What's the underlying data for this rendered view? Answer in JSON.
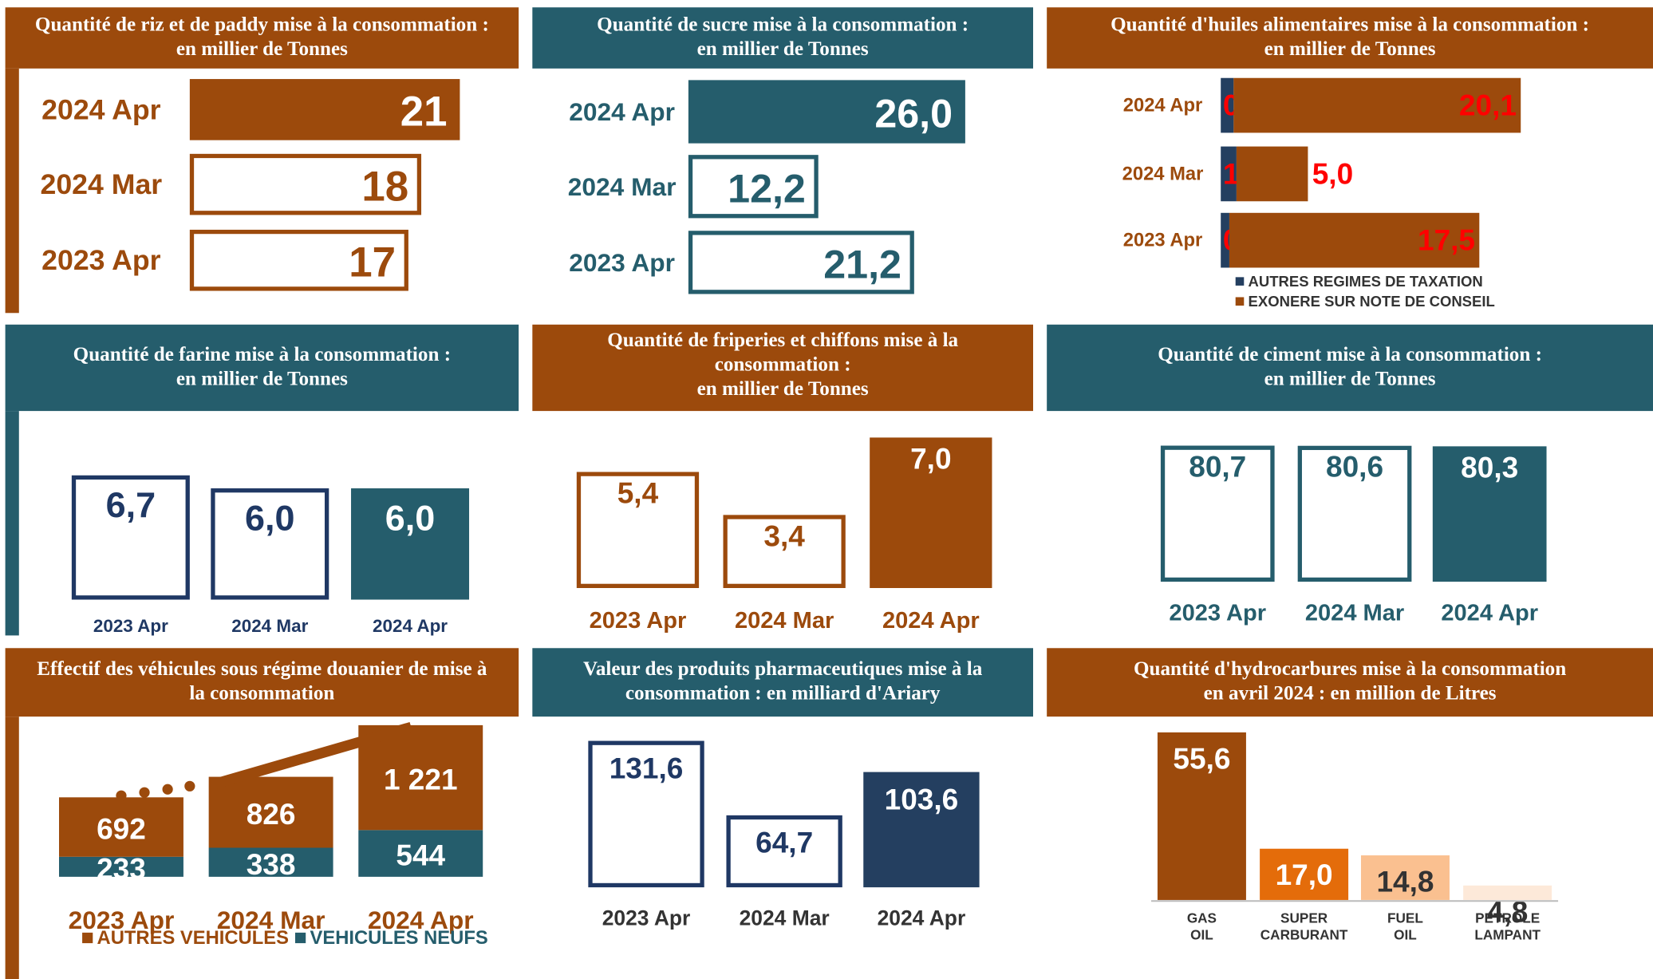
{
  "chart_data": [
    {
      "type": "bar",
      "orientation": "horizontal",
      "title": [
        "Quantité de riz et de paddy mise à la consommation :",
        "en millier de Tonnes"
      ],
      "panel_color": "#9c4a0c",
      "label_color": "#9c4a0c",
      "categories": [
        "2024 Apr",
        "2024 Mar",
        "2023 Apr"
      ],
      "values": [
        21,
        18,
        17
      ],
      "colors": [
        "#9c4a0c",
        "#9c4a0c",
        "#9c4a0c"
      ],
      "filled": [
        true,
        false,
        false
      ]
    },
    {
      "type": "bar",
      "orientation": "horizontal",
      "title": [
        "Quantité de sucre mise à la consommation :",
        "en millier de Tonnes"
      ],
      "panel_color": "#255d6c",
      "label_color": "#255d6c",
      "categories": [
        "2024 Apr",
        "2024 Mar",
        "2023 Apr"
      ],
      "values": [
        26.0,
        12.2,
        21.2
      ],
      "value_labels": [
        "26,0",
        "12,2",
        "21,2"
      ],
      "colors": [
        "#255d6c",
        "#255d6c",
        "#255d6c"
      ],
      "filled": [
        true,
        false,
        false
      ]
    },
    {
      "type": "bar",
      "orientation": "horizontal",
      "stacked": true,
      "title": [
        "Quantité d'huiles alimentaires mise à la consommation :",
        "en millier de Tonnes"
      ],
      "panel_color": "#9c4a0c",
      "label_color": "#9c4a0c",
      "value_label_color": "#ff0000",
      "categories": [
        "2024 Apr",
        "2024 Mar",
        "2023 Apr"
      ],
      "series": [
        {
          "name": "AUTRES REGIMES DE TAXATION",
          "color": "#243f60",
          "values": [
            0.9,
            1.1,
            0.6
          ],
          "value_labels": [
            "0,9",
            "1,1",
            "0,6"
          ]
        },
        {
          "name": "EXONERE SUR NOTE DE CONSEIL",
          "color": "#9c4a0c",
          "values": [
            20.1,
            5.0,
            17.5
          ],
          "value_labels": [
            "20,1",
            "5,0",
            "17,5"
          ]
        }
      ]
    },
    {
      "type": "bar",
      "title": [
        "Quantité de farine mise à la consommation :",
        "en millier de Tonnes"
      ],
      "panel_color": "#255d6c",
      "label_color": "#1f3864",
      "categories": [
        "2023 Apr",
        "2024 Mar",
        "2024 Apr"
      ],
      "values": [
        6.7,
        6.0,
        6.0
      ],
      "value_labels": [
        "6,7",
        "6,0",
        "6,0"
      ],
      "colors": [
        "#1f3864",
        "#1f3864",
        "#255d6c"
      ],
      "filled": [
        false,
        false,
        true
      ]
    },
    {
      "type": "bar",
      "title": [
        "Quantité de friperies et chiffons mise à la",
        "consommation :",
        "en millier de Tonnes"
      ],
      "panel_color": "#9c4a0c",
      "label_color": "#9c4a0c",
      "categories": [
        "2023 Apr",
        "2024 Mar",
        "2024 Apr"
      ],
      "values": [
        5.4,
        3.4,
        7.0
      ],
      "value_labels": [
        "5,4",
        "3,4",
        "7,0"
      ],
      "colors": [
        "#9c4a0c",
        "#9c4a0c",
        "#9c4a0c"
      ],
      "filled": [
        false,
        false,
        true
      ]
    },
    {
      "type": "bar",
      "title": [
        "Quantité de ciment mise à la consommation :",
        "en millier de Tonnes"
      ],
      "panel_color": "#255d6c",
      "label_color": "#255d6c",
      "categories": [
        "2023 Apr",
        "2024 Mar",
        "2024 Apr"
      ],
      "values": [
        80.7,
        80.6,
        80.3
      ],
      "value_labels": [
        "80,7",
        "80,6",
        "80,3"
      ],
      "colors": [
        "#255d6c",
        "#255d6c",
        "#255d6c"
      ],
      "filled": [
        false,
        false,
        true
      ]
    },
    {
      "type": "bar",
      "stacked": true,
      "title": [
        "Effectif des véhicules sous régime douanier de mise à",
        "la consommation"
      ],
      "panel_color": "#9c4a0c",
      "label_color": "#9c4a0c",
      "value_label_color": "#ffffff",
      "categories": [
        "2023 Apr",
        "2024 Mar",
        "2024 Apr"
      ],
      "series": [
        {
          "name": "AUTRES VEHICULES",
          "color": "#9c4a0c",
          "values": [
            692,
            826,
            1221
          ],
          "value_labels": [
            "692",
            "826",
            "1 221"
          ]
        },
        {
          "name": "VEHICULES NEUFS",
          "color": "#255d6c",
          "values": [
            233,
            338,
            544
          ]
        }
      ]
    },
    {
      "type": "bar",
      "title": [
        "Valeur des produits pharmaceutiques mise à la",
        "consommation : en milliard d'Ariary"
      ],
      "panel_color": "#255d6c",
      "label_color": "#333333",
      "categories": [
        "2023 Apr",
        "2024 Mar",
        "2024 Apr"
      ],
      "values": [
        131.6,
        64.7,
        103.6
      ],
      "value_labels": [
        "131,6",
        "64,7",
        "103,6"
      ],
      "colors": [
        "#1f3864",
        "#1f3864",
        "#243f60"
      ],
      "filled": [
        false,
        false,
        true
      ]
    },
    {
      "type": "bar",
      "title": [
        "Quantité d'hydrocarbures mise à la consommation",
        "en avril 2024 : en million de Litres"
      ],
      "panel_color": "#9c4a0c",
      "label_color": "#333333",
      "categories": [
        [
          "GAS",
          "OIL"
        ],
        [
          "SUPER",
          "CARBURANT"
        ],
        [
          "FUEL",
          "OIL"
        ],
        [
          "PETROLE",
          "LAMPANT"
        ]
      ],
      "values": [
        55.6,
        17.0,
        14.8,
        4.8
      ],
      "value_labels": [
        "55,6",
        "17,0",
        "14,8",
        "4,8"
      ],
      "colors": [
        "#9c4a0c",
        "#e46c0a",
        "#fac090",
        "#fde9d9"
      ],
      "filled": [
        true,
        true,
        true,
        true
      ],
      "value_label_colors": [
        "#ffffff",
        "#ffffff",
        "#333333",
        "#333333"
      ]
    }
  ]
}
